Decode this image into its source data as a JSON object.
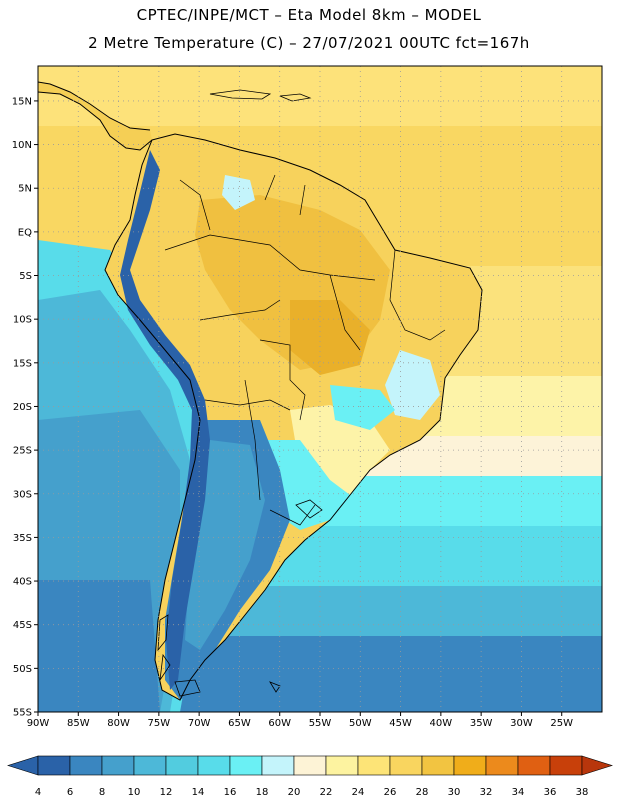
{
  "header": {
    "title_line1": "CPTEC/INPE/MCT –  Eta Model 8km – MODEL",
    "title_line2": "2 Metre Temperature (C) – 27/07/2021 00UTC fct=167h"
  },
  "map": {
    "lat_labels": [
      "15N",
      "10N",
      "5N",
      "EQ",
      "5S",
      "10S",
      "15S",
      "20S",
      "25S",
      "30S",
      "35S",
      "40S",
      "45S",
      "50S",
      "55S"
    ],
    "lon_labels": [
      "90W",
      "85W",
      "80W",
      "75W",
      "70W",
      "65W",
      "60W",
      "55W",
      "50W",
      "45W",
      "40W",
      "35W",
      "30W",
      "25W"
    ],
    "lat_values": [
      15,
      10,
      5,
      0,
      -5,
      -10,
      -15,
      -20,
      -25,
      -30,
      -35,
      -40,
      -45,
      -50,
      -55
    ],
    "lon_values": [
      -90,
      -85,
      -80,
      -75,
      -70,
      -65,
      -60,
      -55,
      -50,
      -45,
      -40,
      -35,
      -30,
      -25
    ],
    "lat_range": [
      -55,
      19
    ],
    "lon_range": [
      -90,
      -20
    ]
  },
  "colorbar": {
    "labels": [
      "4",
      "6",
      "8",
      "10",
      "12",
      "14",
      "16",
      "18",
      "20",
      "22",
      "24",
      "26",
      "28",
      "30",
      "32",
      "34",
      "36",
      "38"
    ],
    "colors": [
      "#2a62a8",
      "#3a86c0",
      "#45a0cc",
      "#4db8d8",
      "#52ccdf",
      "#58dcea",
      "#6af0f4",
      "#c4f4fb",
      "#fdf3d6",
      "#fdf3a0",
      "#fde477",
      "#f9d55f",
      "#f2c441",
      "#f0ad1a",
      "#ec8a1c",
      "#e06012",
      "#c8400a"
    ],
    "low_arrow_color": "#2a62a8",
    "high_arrow_color": "#b8360c"
  }
}
